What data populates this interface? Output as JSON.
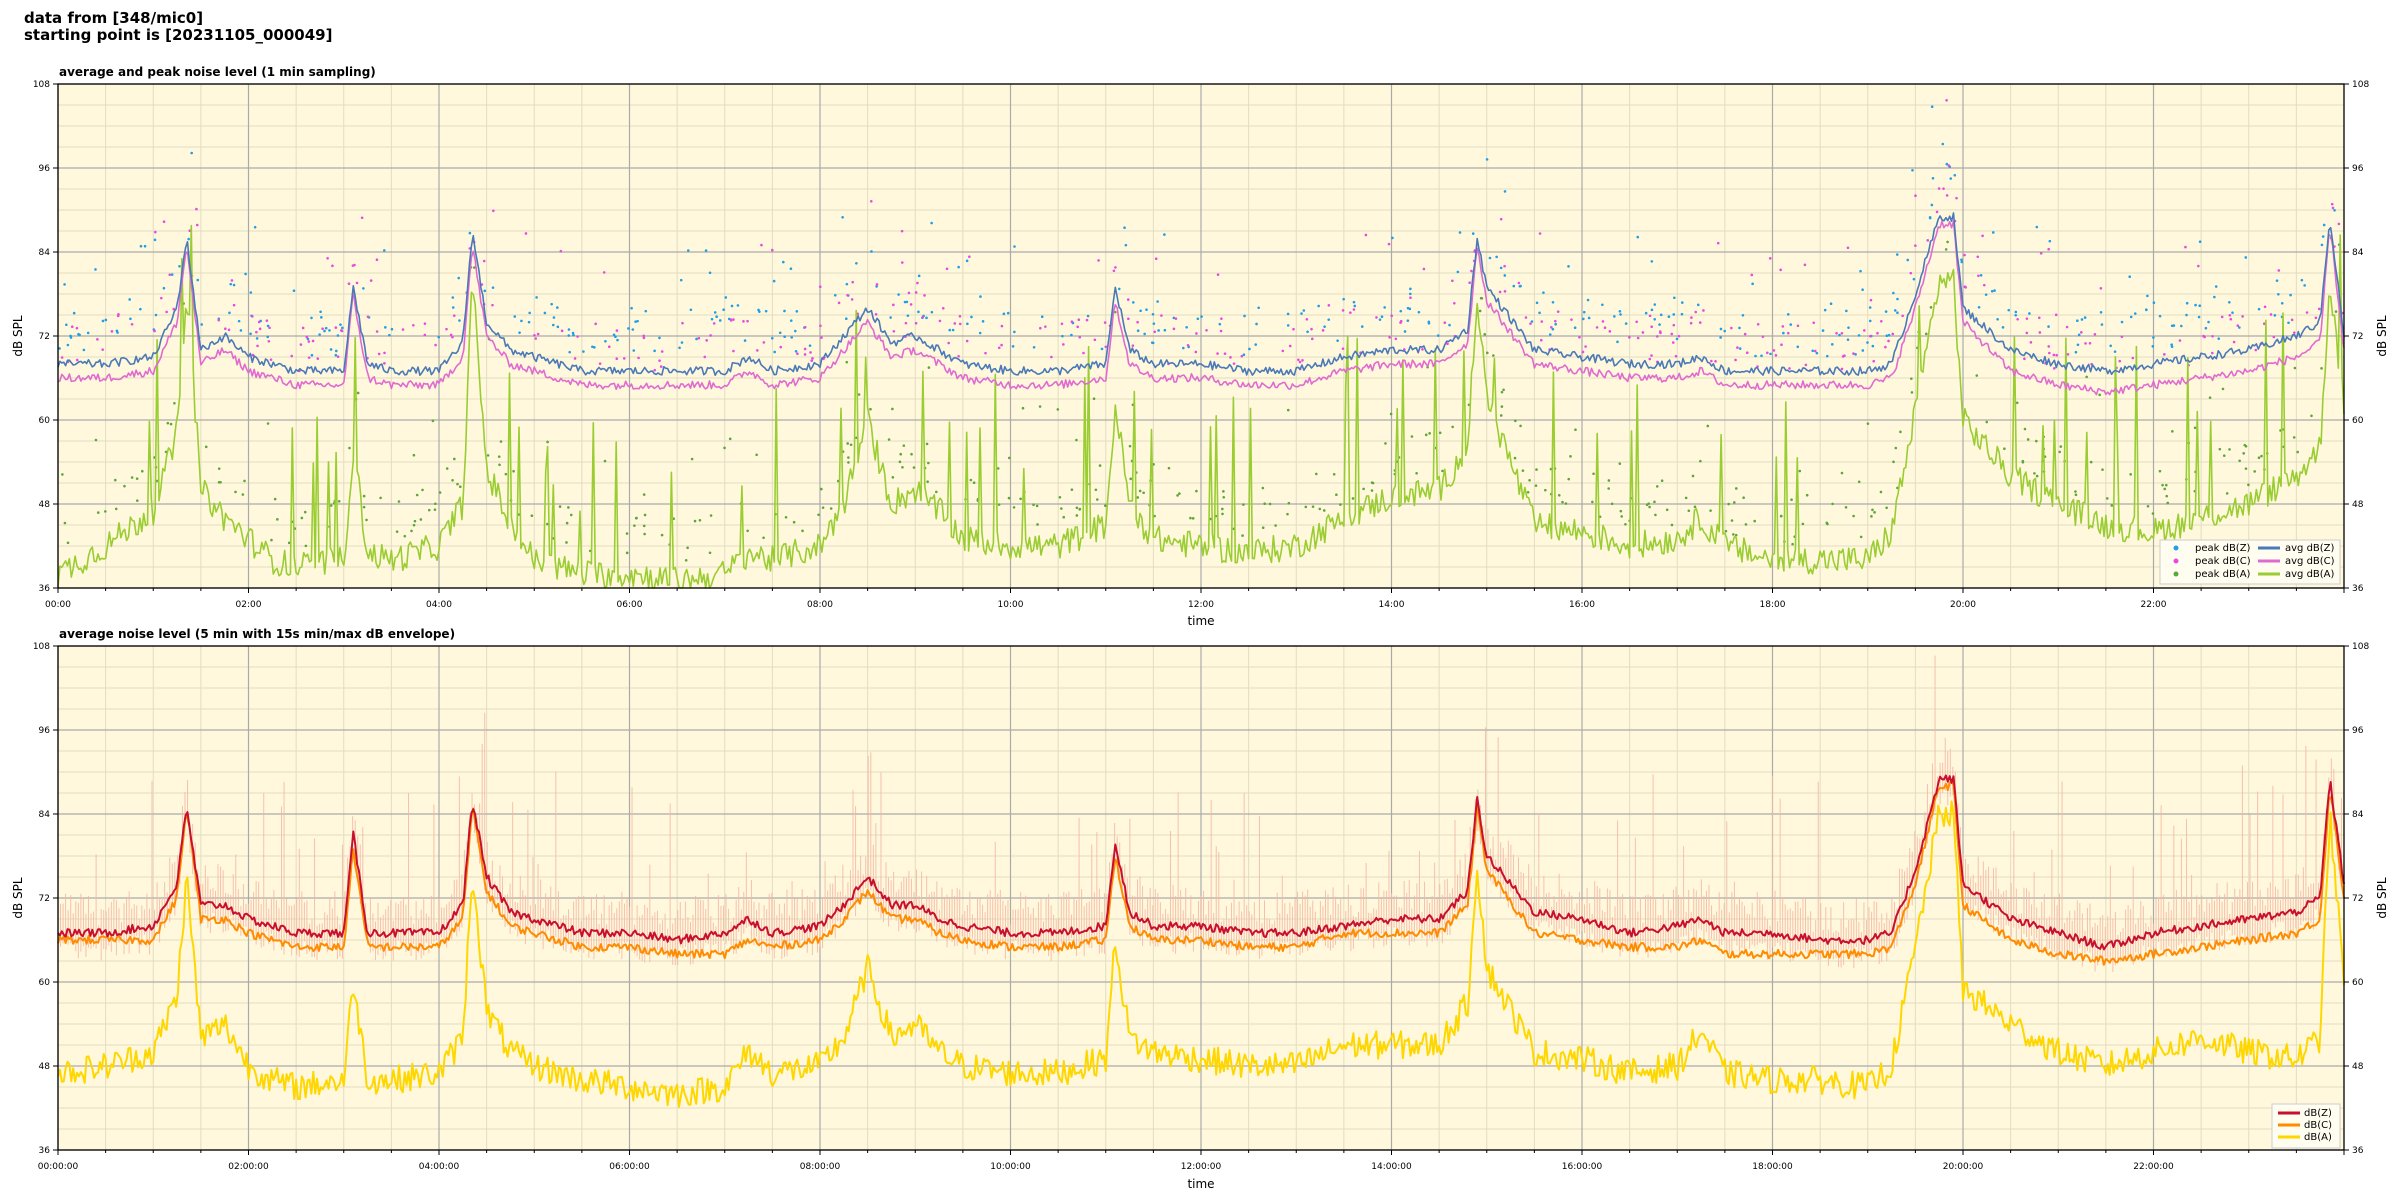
{
  "header": {
    "line1": "data from [348/mic0]",
    "line2": "starting point is [20231105_000049]"
  },
  "colors": {
    "background": "#fff8dc",
    "grid_major": "#aaaaaa",
    "grid_minor": "#e2dcc0",
    "peak_z": "#1f9fe8",
    "peak_c": "#e84adf",
    "peak_a": "#5ca63a",
    "avg_z": "#4a79b8",
    "avg_c": "#e06bd0",
    "avg_a": "#9acd32",
    "env_z": "#c8102e",
    "env_c": "#ff8c00",
    "env_a": "#ffd700",
    "envelope": "#f4b7a4"
  },
  "chart_data": [
    {
      "type": "line",
      "title": "average and peak noise level (1 min sampling)",
      "xlabel": "time",
      "ylabel": "dB SPL",
      "ylim": [
        36,
        108
      ],
      "xlim_hours": [
        0,
        24
      ],
      "y_ticks": [
        "36",
        "48",
        "60",
        "72",
        "84",
        "96",
        "108"
      ],
      "x_tick_labels": [
        "00:00",
        "02:00",
        "04:00",
        "06:00",
        "08:00",
        "10:00",
        "12:00",
        "14:00",
        "16:00",
        "18:00",
        "20:00",
        "22:00"
      ],
      "grid": true,
      "legend_position": "lower right",
      "legend": [
        {
          "label": "peak dB(Z)",
          "kind": "dot",
          "color": "#1f9fe8"
        },
        {
          "label": "peak dB(C)",
          "kind": "dot",
          "color": "#e84adf"
        },
        {
          "label": "peak dB(A)",
          "kind": "dot",
          "color": "#5ca63a"
        },
        {
          "label": "avg dB(Z)",
          "kind": "line",
          "color": "#4a79b8"
        },
        {
          "label": "avg dB(C)",
          "kind": "line",
          "color": "#e06bd0"
        },
        {
          "label": "avg dB(A)",
          "kind": "line",
          "color": "#9acd32"
        }
      ],
      "x_hours": [
        0,
        0.5,
        1,
        1.25,
        1.35,
        1.5,
        1.75,
        2,
        2.25,
        2.5,
        3,
        3.1,
        3.25,
        3.5,
        4,
        4.25,
        4.35,
        4.5,
        4.75,
        5,
        5.5,
        6,
        6.5,
        7,
        7.25,
        7.5,
        8,
        8.25,
        8.5,
        8.75,
        9,
        9.25,
        9.5,
        10,
        10.5,
        11,
        11.1,
        11.25,
        11.5,
        12,
        12.5,
        13,
        13.5,
        14,
        14.5,
        14.8,
        14.9,
        15,
        15.5,
        16,
        16.5,
        17,
        17.25,
        17.5,
        18,
        18.5,
        19,
        19.25,
        19.5,
        19.75,
        19.9,
        20,
        20.5,
        21,
        21.5,
        22,
        22.5,
        23,
        23.5,
        23.75,
        23.85,
        24
      ],
      "series": [
        {
          "name": "avg dB(Z)",
          "values": [
            68,
            68,
            69,
            76,
            86,
            70,
            72,
            69,
            68,
            67,
            67,
            79,
            68,
            67,
            67,
            71,
            87,
            74,
            70,
            69,
            67,
            67,
            67,
            67,
            69,
            67,
            68,
            72,
            76,
            71,
            72,
            70,
            68,
            67,
            67,
            68,
            79,
            70,
            68,
            68,
            67,
            67,
            69,
            70,
            70,
            73,
            86,
            79,
            70,
            69,
            68,
            68,
            69,
            67,
            67,
            67,
            67,
            68,
            78,
            89,
            89,
            76,
            70,
            68,
            67,
            68,
            69,
            70,
            72,
            74,
            89,
            72
          ]
        },
        {
          "name": "avg dB(C)",
          "values": [
            66,
            66,
            67,
            74,
            85,
            68,
            70,
            67,
            66,
            65,
            65,
            78,
            66,
            65,
            65,
            69,
            85,
            72,
            68,
            67,
            65,
            65,
            65,
            65,
            67,
            65,
            66,
            70,
            74,
            69,
            70,
            68,
            66,
            65,
            65,
            66,
            77,
            68,
            66,
            66,
            65,
            65,
            67,
            68,
            68,
            71,
            85,
            77,
            68,
            67,
            66,
            66,
            67,
            65,
            65,
            65,
            65,
            66,
            76,
            88,
            88,
            74,
            67,
            65,
            64,
            65,
            66,
            67,
            69,
            71,
            88,
            70
          ]
        },
        {
          "name": "avg dB(A)",
          "values": [
            38,
            42,
            47,
            58,
            79,
            50,
            46,
            43,
            40,
            39,
            40,
            56,
            41,
            40,
            42,
            48,
            80,
            53,
            45,
            40,
            38,
            38,
            37,
            38,
            41,
            40,
            42,
            48,
            60,
            48,
            50,
            47,
            43,
            42,
            42,
            45,
            62,
            48,
            43,
            42,
            41,
            42,
            46,
            49,
            50,
            56,
            78,
            63,
            45,
            44,
            42,
            43,
            46,
            42,
            40,
            40,
            40,
            44,
            61,
            80,
            80,
            60,
            52,
            48,
            45,
            44,
            46,
            48,
            52,
            56,
            80,
            62
          ]
        }
      ]
    },
    {
      "type": "line",
      "title": "average noise level (5 min with 15s min/max dB envelope)",
      "xlabel": "time",
      "ylabel": "dB SPL",
      "ylim": [
        36,
        108
      ],
      "xlim_hours": [
        0,
        24
      ],
      "y_ticks": [
        "36",
        "48",
        "60",
        "72",
        "84",
        "96",
        "108"
      ],
      "x_tick_labels": [
        "00:00:00",
        "02:00:00",
        "04:00:00",
        "06:00:00",
        "08:00:00",
        "10:00:00",
        "12:00:00",
        "14:00:00",
        "16:00:00",
        "18:00:00",
        "20:00:00",
        "22:00:00"
      ],
      "grid": true,
      "legend_position": "lower right",
      "legend": [
        {
          "label": "dB(Z)",
          "kind": "line",
          "color": "#c8102e"
        },
        {
          "label": "dB(C)",
          "kind": "line",
          "color": "#ff8c00"
        },
        {
          "label": "dB(A)",
          "kind": "line",
          "color": "#ffd700"
        }
      ],
      "x_hours": [
        0,
        0.5,
        1,
        1.25,
        1.35,
        1.5,
        1.75,
        2,
        2.25,
        2.5,
        3,
        3.1,
        3.25,
        3.5,
        4,
        4.25,
        4.35,
        4.5,
        4.75,
        5,
        5.5,
        6,
        6.5,
        7,
        7.25,
        7.5,
        8,
        8.25,
        8.5,
        8.75,
        9,
        9.25,
        9.5,
        10,
        10.5,
        11,
        11.1,
        11.25,
        11.5,
        12,
        12.5,
        13,
        13.5,
        14,
        14.5,
        14.8,
        14.9,
        15,
        15.5,
        16,
        16.5,
        17,
        17.25,
        17.5,
        18,
        18.5,
        19,
        19.25,
        19.5,
        19.75,
        19.9,
        20,
        20.5,
        21,
        21.5,
        22,
        22.5,
        23,
        23.5,
        23.75,
        23.85,
        24
      ],
      "series": [
        {
          "name": "dB(Z)",
          "values": [
            67,
            67,
            68,
            74,
            85,
            71,
            71,
            69,
            68,
            67,
            67,
            81,
            67,
            67,
            67,
            71,
            86,
            75,
            70,
            69,
            67,
            67,
            66,
            67,
            69,
            67,
            68,
            71,
            75,
            71,
            71,
            69,
            68,
            67,
            67,
            68,
            80,
            70,
            68,
            68,
            67,
            67,
            68,
            69,
            69,
            73,
            86,
            78,
            70,
            69,
            67,
            68,
            69,
            67,
            67,
            66,
            66,
            67,
            76,
            89,
            89,
            74,
            69,
            67,
            65,
            67,
            68,
            69,
            70,
            72,
            89,
            74
          ]
        },
        {
          "name": "dB(C)",
          "values": [
            66,
            66,
            66,
            72,
            85,
            69,
            69,
            67,
            66,
            65,
            65,
            79,
            65,
            65,
            65,
            69,
            85,
            73,
            68,
            67,
            65,
            65,
            64,
            64,
            66,
            65,
            66,
            69,
            73,
            69,
            69,
            67,
            66,
            65,
            65,
            66,
            78,
            68,
            66,
            66,
            65,
            65,
            67,
            67,
            67,
            71,
            85,
            76,
            67,
            66,
            65,
            65,
            66,
            64,
            64,
            64,
            64,
            65,
            74,
            88,
            88,
            71,
            66,
            64,
            63,
            64,
            65,
            66,
            67,
            69,
            88,
            72
          ]
        },
        {
          "name": "dB(A)",
          "values": [
            47,
            48,
            50,
            58,
            75,
            52,
            54,
            48,
            46,
            45,
            46,
            60,
            46,
            46,
            47,
            52,
            76,
            56,
            50,
            48,
            46,
            45,
            44,
            45,
            50,
            47,
            48,
            52,
            62,
            52,
            54,
            50,
            48,
            47,
            47,
            49,
            66,
            52,
            50,
            49,
            48,
            48,
            51,
            51,
            51,
            57,
            77,
            62,
            50,
            49,
            47,
            48,
            53,
            47,
            46,
            46,
            45,
            48,
            65,
            84,
            84,
            59,
            54,
            50,
            48,
            50,
            52,
            50,
            49,
            52,
            84,
            60
          ]
        }
      ]
    }
  ]
}
